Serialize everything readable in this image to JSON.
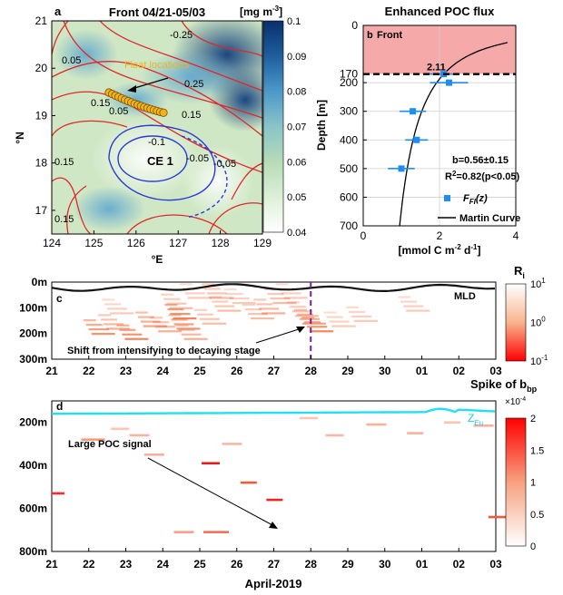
{
  "chart_data": [
    {
      "type": "heatmap",
      "panel": "a",
      "title": "Front 04/21-05/03",
      "xlabel": "°E",
      "ylabel": "°N",
      "xlim": [
        124,
        129
      ],
      "ylim": [
        16.5,
        21
      ],
      "xticks": [
        "124",
        "125",
        "126",
        "127",
        "128",
        "129"
      ],
      "yticks": [
        "21",
        "20",
        "19",
        "18",
        "17"
      ],
      "colorbar_label": "[mg m",
      "colorbar_label_exp": "-3",
      "colorbar_label_end": "]",
      "colorbar_ticks": [
        "0.1",
        "0.09",
        "0.08",
        "0.07",
        "0.06",
        "0.05",
        "0.04"
      ],
      "colorbar_range": [
        0.04,
        0.1
      ],
      "annotations": [
        "Float locations",
        "CE 1"
      ],
      "contour_labels": [
        "-0.25",
        "0.05",
        "0.25",
        "0.15",
        "0.05",
        "0.15",
        "-0.1",
        "-0.05",
        "-0.05",
        "0.15",
        "0.15"
      ],
      "colors": {
        "positive_contour": "#e0282a",
        "negative_contour": "#2a3ad8",
        "float": "#f2b318"
      }
    },
    {
      "type": "scatter",
      "panel": "b",
      "title": "Enhanced POC flux",
      "label": "Front",
      "xlabel": "[mmol C m",
      "xlabel_exp": "-2",
      "xlabel_mid": " d",
      "xlabel_exp2": "-1",
      "xlabel_end": "]",
      "ylabel": "Depth [m]",
      "xlim": [
        0,
        4
      ],
      "ylim": [
        700,
        0
      ],
      "xticks": [
        "0",
        "2",
        "4"
      ],
      "yticks": [
        "0",
        "170",
        "200",
        "300",
        "400",
        "500",
        "600",
        "700"
      ],
      "ref_depth": 170,
      "ref_value_label": "2.11",
      "points": [
        {
          "x": 2.11,
          "y": 170,
          "xerr": 0.4
        },
        {
          "x": 2.25,
          "y": 200,
          "xerr": 0.5
        },
        {
          "x": 1.3,
          "y": 300,
          "xerr": 0.35
        },
        {
          "x": 1.4,
          "y": 400,
          "xerr": 0.3
        },
        {
          "x": 1.0,
          "y": 500,
          "xerr": 0.35
        }
      ],
      "fit_b": 0.56,
      "stat_b": "b=0.56±0.15",
      "stat_r2_pre": "R",
      "stat_r2_exp": "2",
      "stat_r2_post": "=0.82(p<0.05)",
      "legend": [
        {
          "label_main": "F",
          "label_sub": "FI",
          "label_end": "(z)",
          "marker": "square"
        },
        {
          "label": "Martin Curve",
          "marker": "line"
        }
      ],
      "colors": {
        "shade": "#f6a9a9",
        "points": "#1f8ef0"
      }
    },
    {
      "type": "heatmap",
      "panel": "c",
      "xlabel": "",
      "xticks": [
        "21",
        "22",
        "23",
        "24",
        "25",
        "26",
        "27",
        "28",
        "29",
        "30",
        "01",
        "02",
        "03"
      ],
      "yticks": [
        "0m",
        "100m",
        "200m",
        "300m"
      ],
      "ylim": [
        300,
        0
      ],
      "colorbar_label": "R",
      "colorbar_label_sub": "i",
      "colorbar_ticks_base": [
        "10",
        "10",
        "10"
      ],
      "colorbar_ticks_exp": [
        "1",
        "0",
        "-1"
      ],
      "line_label": "MLD",
      "annotation": "Shift from intensifying to decaying stage",
      "marker_day": "28",
      "colors": {
        "high": "#ff0000",
        "low": "#ffffff",
        "marker": "#7a1fa0"
      }
    },
    {
      "type": "heatmap",
      "panel": "d",
      "xlabel": "April-2019",
      "xticks": [
        "21",
        "22",
        "23",
        "24",
        "25",
        "26",
        "27",
        "28",
        "29",
        "30",
        "01",
        "02",
        "03"
      ],
      "yticks": [
        "200m",
        "400m",
        "600m",
        "800m"
      ],
      "ylim": [
        800,
        100
      ],
      "title": "Spike of b",
      "title_sub": "bp",
      "colorbar_multiplier": "×10",
      "colorbar_multiplier_exp": "-4",
      "colorbar_ticks": [
        "2",
        "1.5",
        "1",
        "0.5",
        "0"
      ],
      "colorbar_range": [
        0,
        0.0002
      ],
      "line_label": "Z",
      "line_label_sub": "Eu",
      "annotation": "Large POC signal",
      "colors": {
        "high": "#ff0000",
        "low": "#ffffff",
        "line": "#22e0f0"
      }
    }
  ]
}
